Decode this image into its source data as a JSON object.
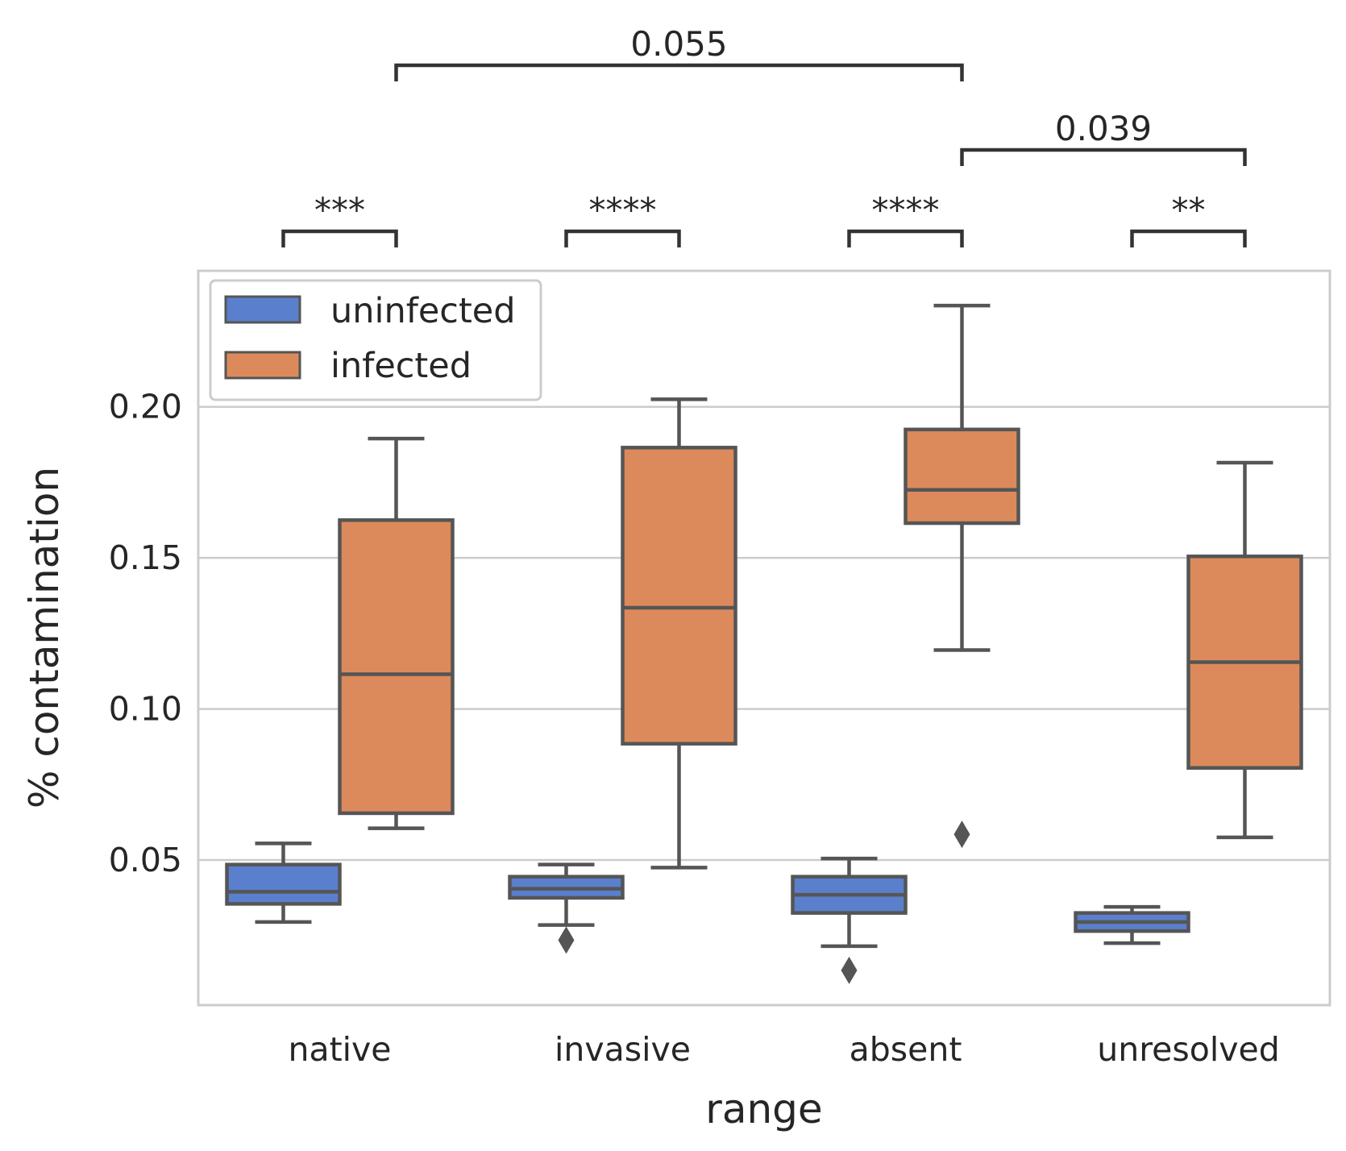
{
  "chart_data": {
    "type": "box",
    "xlabel": "range",
    "ylabel": "% contamination",
    "categories": [
      "native",
      "invasive",
      "absent",
      "unresolved"
    ],
    "ylim": [
      0.002,
      0.245
    ],
    "yticks": [
      0.05,
      0.1,
      0.15,
      0.2
    ],
    "ytick_labels": [
      "0.05",
      "0.10",
      "0.15",
      "0.20"
    ],
    "grid": "horizontal",
    "legend": {
      "position": "top-left"
    },
    "colors": {
      "uninfected": "#5a7fcc",
      "infected": "#dc8a5c",
      "edge": "#555555",
      "frame": "#cccccc",
      "grid": "#cccccc"
    },
    "series": [
      {
        "name": "uninfected",
        "color": "#5a7fcc",
        "boxes": [
          {
            "category": "native",
            "whislo": 0.0295,
            "q1": 0.0355,
            "med": 0.0395,
            "q3": 0.0485,
            "whishi": 0.0555,
            "fliers": []
          },
          {
            "category": "invasive",
            "whislo": 0.0285,
            "q1": 0.0375,
            "med": 0.0405,
            "q3": 0.0445,
            "whishi": 0.0485,
            "fliers": [
              0.0235
            ]
          },
          {
            "category": "absent",
            "whislo": 0.0215,
            "q1": 0.0325,
            "med": 0.0385,
            "q3": 0.0445,
            "whishi": 0.0505,
            "fliers": [
              0.0135
            ]
          },
          {
            "category": "unresolved",
            "whislo": 0.0225,
            "q1": 0.0265,
            "med": 0.0295,
            "q3": 0.0325,
            "whishi": 0.0345,
            "fliers": []
          }
        ]
      },
      {
        "name": "infected",
        "color": "#dc8a5c",
        "boxes": [
          {
            "category": "native",
            "whislo": 0.0605,
            "q1": 0.0655,
            "med": 0.1115,
            "q3": 0.1625,
            "whishi": 0.1895,
            "fliers": []
          },
          {
            "category": "invasive",
            "whislo": 0.0475,
            "q1": 0.0885,
            "med": 0.1335,
            "q3": 0.1865,
            "whishi": 0.2025,
            "fliers": []
          },
          {
            "category": "absent",
            "whislo": 0.1195,
            "q1": 0.1615,
            "med": 0.1725,
            "q3": 0.1925,
            "whishi": 0.2335,
            "fliers": [
              0.0585
            ]
          },
          {
            "category": "unresolved",
            "whislo": 0.0575,
            "q1": 0.0805,
            "med": 0.1155,
            "q3": 0.1505,
            "whishi": 0.1815,
            "fliers": []
          }
        ]
      }
    ],
    "annotations": [
      {
        "text": "***",
        "from": [
          "native",
          "uninfected"
        ],
        "to": [
          "native",
          "infected"
        ],
        "level": 0
      },
      {
        "text": "****",
        "from": [
          "invasive",
          "uninfected"
        ],
        "to": [
          "invasive",
          "infected"
        ],
        "level": 0
      },
      {
        "text": "****",
        "from": [
          "absent",
          "uninfected"
        ],
        "to": [
          "absent",
          "infected"
        ],
        "level": 0
      },
      {
        "text": "**",
        "from": [
          "unresolved",
          "uninfected"
        ],
        "to": [
          "unresolved",
          "infected"
        ],
        "level": 0
      },
      {
        "text": "0.039",
        "from": [
          "absent",
          "infected"
        ],
        "to": [
          "unresolved",
          "infected"
        ],
        "level": 1
      },
      {
        "text": "0.055",
        "from": [
          "native",
          "infected"
        ],
        "to": [
          "absent",
          "infected"
        ],
        "level": 2
      }
    ]
  }
}
